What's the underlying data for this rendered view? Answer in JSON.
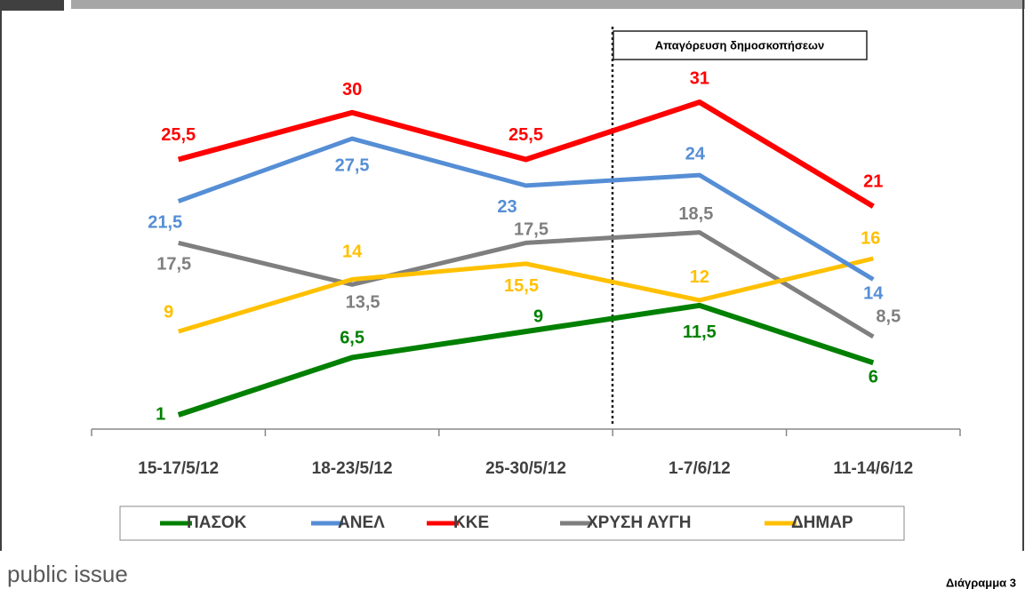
{
  "chart_data": {
    "type": "line",
    "categories": [
      "15-17/5/12",
      "18-23/5/12",
      "25-30/5/12",
      "1-7/6/12",
      "11-14/6/12"
    ],
    "annotation": "Απαγόρευση δημοσκοπήσεων",
    "source": "public issue",
    "figure_label": "Διάγραμμα 3",
    "legend": "bottom",
    "series": [
      {
        "name": "ΠΑΣΟΚ",
        "color": "#008000",
        "values": [
          1,
          6.5,
          9,
          11.5,
          6
        ],
        "value_labels": [
          "1",
          "6,5",
          "9",
          "11,5",
          "6"
        ]
      },
      {
        "name": "ΑΝΕΛ",
        "color": "#558ed5",
        "values": [
          21.5,
          27.5,
          23,
          24,
          14
        ],
        "value_labels": [
          "21,5",
          "27,5",
          "23",
          "24",
          "14"
        ]
      },
      {
        "name": "ΚΚΕ",
        "color": "#ff0000",
        "values": [
          25.5,
          30,
          25.5,
          31,
          21
        ],
        "value_labels": [
          "25,5",
          "30",
          "25,5",
          "31",
          "21"
        ]
      },
      {
        "name": "ΧΡΥΣΗ ΑΥΓΗ",
        "color": "#7f7f7f",
        "values": [
          17.5,
          13.5,
          17.5,
          18.5,
          8.5
        ],
        "value_labels": [
          "17,5",
          "13,5",
          "17,5",
          "18,5",
          "8,5"
        ]
      },
      {
        "name": "ΔΗΜΑΡ",
        "color": "#ffc000",
        "values": [
          9,
          14,
          15.5,
          12,
          16
        ],
        "value_labels": [
          "9",
          "14",
          "15,5",
          "12",
          "16"
        ]
      }
    ]
  }
}
